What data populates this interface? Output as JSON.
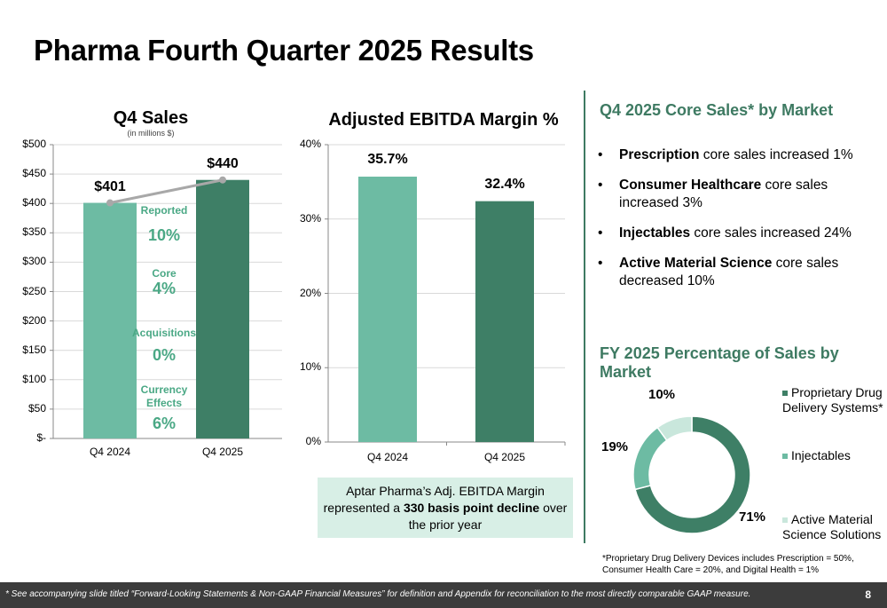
{
  "title": "Pharma Fourth Quarter 2025 Results",
  "q4_sales": {
    "title": "Q4 Sales",
    "subtitle": "(in millions $)",
    "ticks": [
      "$500",
      "$450",
      "$400",
      "$350",
      "$300",
      "$250",
      "$200",
      "$150",
      "$100",
      "$50",
      "$-"
    ],
    "growth": [
      {
        "label": "Reported",
        "value": "10%"
      },
      {
        "label": "Core",
        "value": "4%"
      },
      {
        "label": "Acquisitions",
        "value": "0%"
      },
      {
        "label": "Currency Effects",
        "value": "6%"
      }
    ]
  },
  "ebitda": {
    "title": "Adjusted EBITDA Margin %",
    "ticks": [
      "40%",
      "30%",
      "20%",
      "10%",
      "0%"
    ],
    "note_prefix": "Aptar Pharma’s Adj. EBITDA Margin represented a ",
    "note_bold": "330 basis point decline",
    "note_suffix": " over the prior year"
  },
  "core_sales": {
    "heading": "Q4 2025 Core Sales* by Market",
    "bullets": [
      {
        "bold": "Prescription",
        "rest": " core sales increased 1%"
      },
      {
        "bold": "Consumer Healthcare",
        "rest": " core sales increased 3%"
      },
      {
        "bold": "Injectables",
        "rest": " core sales increased 24%"
      },
      {
        "bold": "Active Material Science",
        "rest": " core sales decreased 10%"
      }
    ]
  },
  "fy_sales": {
    "heading": "FY 2025 Percentage of Sales by Market",
    "footnote": "*Proprietary Drug Delivery Devices includes Prescription = 50%, Consumer Health Care = 20%, and Digital Health = 1%"
  },
  "footer": {
    "text": "* See accompanying slide titled “Forward-Looking Statements & Non-GAAP Financial Measures” for definition and Appendix for reconciliation to the most directly comparable GAAP measure.",
    "page": "8"
  },
  "colors": {
    "light_green": "#6dbba3",
    "dark_green": "#3e7f66",
    "pale_green": "#c9e7dc",
    "line_gray": "#a8a8a8"
  },
  "chart_data": [
    {
      "type": "bar",
      "title": "Q4 Sales",
      "subtitle": "(in millions $)",
      "categories": [
        "Q4 2024",
        "Q4 2025"
      ],
      "values": [
        401,
        440
      ],
      "value_labels": [
        "$401",
        "$440"
      ],
      "ylim": [
        0,
        500
      ],
      "grid": true
    },
    {
      "type": "bar",
      "title": "Adjusted EBITDA Margin %",
      "categories": [
        "Q4 2024",
        "Q4 2025"
      ],
      "values": [
        35.7,
        32.4
      ],
      "value_labels": [
        "35.7%",
        "32.4%"
      ],
      "ylim": [
        0,
        40
      ],
      "grid": true
    },
    {
      "type": "pie",
      "title": "FY 2025 Percentage of Sales by Market",
      "categories": [
        "Proprietary Drug Delivery Systems*",
        "Injectables",
        "Active Material Science Solutions"
      ],
      "values": [
        71,
        19,
        10
      ],
      "value_labels": [
        "71%",
        "19%",
        "10%"
      ],
      "legend": "right"
    }
  ]
}
